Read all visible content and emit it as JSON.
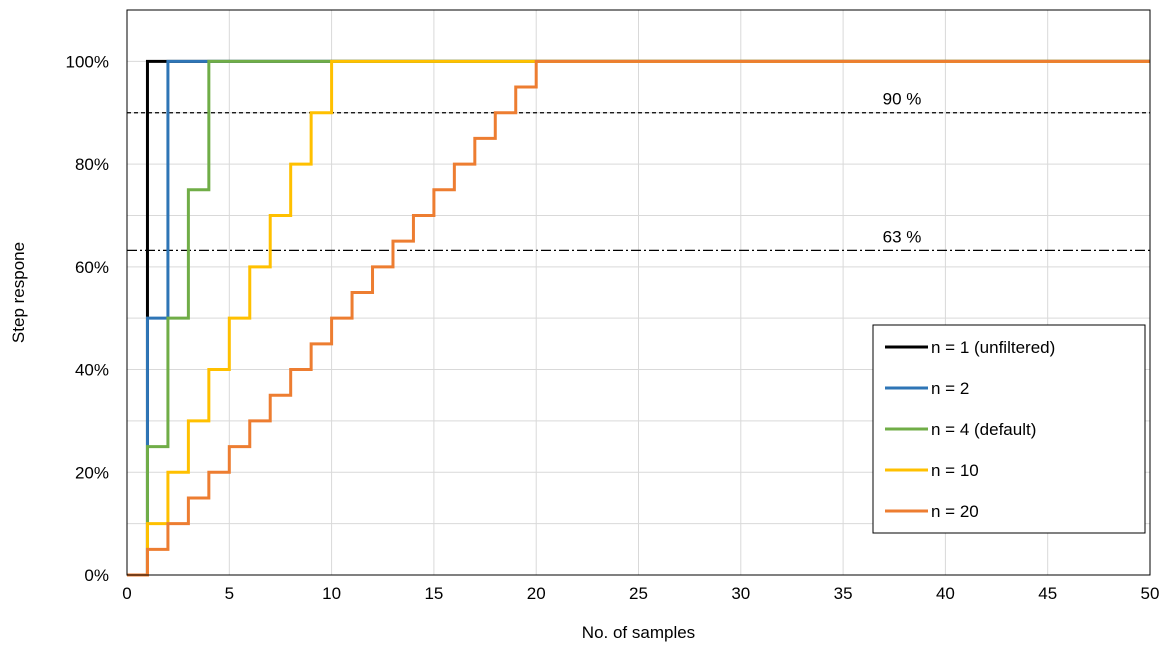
{
  "chart_data": {
    "type": "line",
    "xlabel": "No. of samples",
    "ylabel": "Step respone",
    "xlim": [
      0,
      50
    ],
    "ylim": [
      0,
      1.1
    ],
    "x_ticks": [
      "0",
      "5",
      "10",
      "15",
      "20",
      "25",
      "30",
      "35",
      "40",
      "45",
      "50"
    ],
    "y_ticks": [
      "0%",
      "20%",
      "40%",
      "60%",
      "80%",
      "100%"
    ],
    "grid": true,
    "legend_position": "bottom-right",
    "step_start": 1,
    "series": [
      {
        "name": "n = 1 (unfiltered)",
        "n": 1,
        "color": "#000000"
      },
      {
        "name": "n = 2",
        "n": 2,
        "color": "#2e75b6"
      },
      {
        "name": "n = 4 (default)",
        "n": 4,
        "color": "#70ad47"
      },
      {
        "name": "n = 10",
        "n": 10,
        "color": "#ffc000"
      },
      {
        "name": "n = 20",
        "n": 20,
        "color": "#ed7d31"
      }
    ],
    "reference_lines": [
      {
        "y": 0.9,
        "label": "90 %",
        "style": "dashed"
      },
      {
        "y": 0.632,
        "label": "63 %",
        "style": "dash-dot"
      }
    ]
  }
}
